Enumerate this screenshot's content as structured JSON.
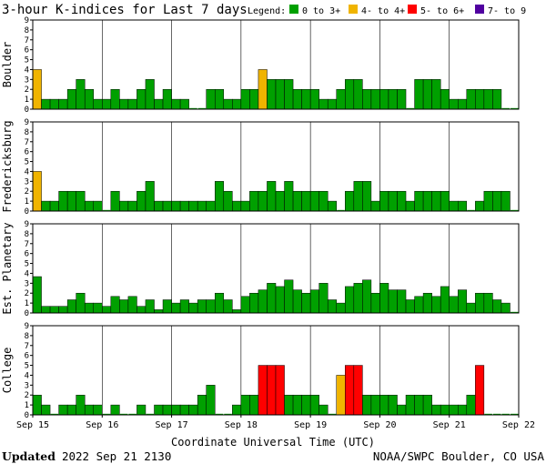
{
  "title": "3-hour K-indices for Last 7 days",
  "legend": {
    "label": "Legend:",
    "items": [
      {
        "label": "0 to 3+",
        "color": "#00a000"
      },
      {
        "label": "4- to 4+",
        "color": "#f0b400"
      },
      {
        "label": "5- to 6+",
        "color": "#ff0000"
      },
      {
        "label": "7- to 9",
        "color": "#5000a0"
      }
    ]
  },
  "footer": {
    "updated_label": "Updated",
    "updated_value": "2022 Sep 21 2130",
    "source": "NOAA/SWPC Boulder, CO USA"
  },
  "chart_data": {
    "type": "bar",
    "xlabel": "Coordinate Universal Time (UTC)",
    "x_ticks": [
      "Sep 15",
      "Sep 16",
      "Sep 17",
      "Sep 18",
      "Sep 19",
      "Sep 20",
      "Sep 21",
      "Sep 22"
    ],
    "y_ticks": [
      "0",
      "1",
      "2",
      "3",
      "4",
      "5",
      "6",
      "7",
      "8",
      "9"
    ],
    "ylim": [
      0,
      9
    ],
    "bins_per_day": 8,
    "panels": [
      {
        "name": "Boulder",
        "values": [
          4,
          1,
          1,
          1,
          2,
          3,
          2,
          1,
          1,
          2,
          1,
          1,
          2,
          3,
          1,
          2,
          1,
          1,
          0,
          0,
          2,
          2,
          1,
          1,
          2,
          2,
          4,
          3,
          3,
          3,
          2,
          2,
          2,
          1,
          1,
          2,
          3,
          3,
          2,
          2,
          2,
          2,
          2,
          0,
          3,
          3,
          3,
          2,
          1,
          1,
          2,
          2,
          2,
          2,
          0,
          0
        ]
      },
      {
        "name": "Fredericksburg",
        "values": [
          4,
          1,
          1,
          2,
          2,
          2,
          1,
          1,
          0,
          2,
          1,
          1,
          2,
          3,
          1,
          1,
          1,
          1,
          1,
          1,
          1,
          3,
          2,
          1,
          1,
          2,
          2,
          3,
          2,
          3,
          2,
          2,
          2,
          2,
          1,
          0,
          2,
          3,
          3,
          1,
          2,
          2,
          2,
          1,
          2,
          2,
          2,
          2,
          1,
          1,
          0,
          1,
          2,
          2,
          2,
          0
        ]
      },
      {
        "name": "Est. Planetary",
        "values": [
          3.67,
          0.67,
          0.67,
          0.67,
          1.33,
          2,
          1,
          1,
          0.67,
          1.67,
          1.33,
          1.67,
          0.67,
          1.33,
          0.33,
          1.33,
          1,
          1.33,
          1,
          1.33,
          1.33,
          2,
          1.33,
          0.33,
          1.67,
          2,
          2.33,
          3,
          2.67,
          3.33,
          2.33,
          2,
          2.33,
          3,
          1.33,
          1,
          2.67,
          3,
          3.33,
          2,
          3,
          2.33,
          2.33,
          1.33,
          1.67,
          2,
          1.67,
          2.67,
          1.67,
          2.33,
          1,
          2,
          2,
          1.33,
          1,
          0
        ]
      },
      {
        "name": "College",
        "values": [
          2,
          1,
          0,
          1,
          1,
          2,
          1,
          1,
          0,
          1,
          0,
          0,
          1,
          0,
          1,
          1,
          1,
          1,
          1,
          2,
          3,
          0,
          0,
          1,
          2,
          2,
          5,
          5,
          5,
          2,
          2,
          2,
          2,
          1,
          0,
          4,
          5,
          5,
          2,
          2,
          2,
          2,
          1,
          2,
          2,
          2,
          1,
          1,
          1,
          1,
          2,
          5,
          0,
          0,
          0,
          0
        ]
      }
    ]
  }
}
